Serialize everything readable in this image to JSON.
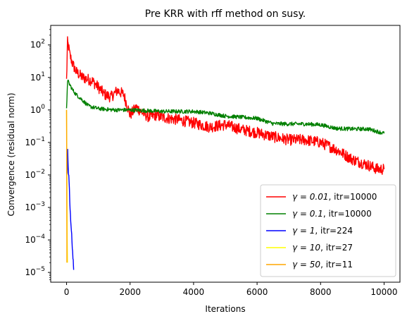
{
  "chart_data": {
    "type": "line",
    "title": "Pre KRR with rff method on susy.",
    "xlabel": "Iterations",
    "ylabel": "Convergence (residual norm)",
    "yscale": "log",
    "xlim": [
      -500,
      10500
    ],
    "ylim": [
      5e-06,
      400
    ],
    "xticks": [
      0,
      2000,
      4000,
      6000,
      8000,
      10000
    ],
    "xtick_labels": [
      "0",
      "2000",
      "4000",
      "6000",
      "8000",
      "10000"
    ],
    "yticks": [
      1e-05,
      0.0001,
      0.001,
      0.01,
      0.1,
      1,
      10,
      100
    ],
    "ytick_mantissa": "10",
    "ytick_exponents": [
      "−5",
      "−4",
      "−3",
      "−2",
      "−1",
      "0",
      "1",
      "2"
    ],
    "grid": false,
    "legend_position": "lower-right",
    "series": [
      {
        "name": "γ = 0.01, itr=10000",
        "legend_math": "γ = 0.01",
        "legend_suffix": ", itr=10000",
        "color": "#ff0000",
        "noise": 0.35,
        "x": [
          0,
          30,
          60,
          100,
          200,
          300,
          500,
          800,
          1000,
          1200,
          1400,
          1600,
          1800,
          2000,
          2200,
          2400,
          2600,
          2800,
          3000,
          3500,
          4000,
          4500,
          5000,
          5500,
          6000,
          6500,
          7000,
          7500,
          8000,
          8500,
          9000,
          9500,
          9800,
          10000
        ],
        "y": [
          8,
          120,
          90,
          50,
          25,
          15,
          10,
          8,
          5,
          3,
          2.5,
          4,
          3,
          0.7,
          1.2,
          0.8,
          0.6,
          0.7,
          0.6,
          0.5,
          0.4,
          0.3,
          0.35,
          0.25,
          0.2,
          0.15,
          0.12,
          0.12,
          0.1,
          0.06,
          0.03,
          0.02,
          0.015,
          0.015
        ]
      },
      {
        "name": "γ = 0.1, itr=10000",
        "legend_math": "γ = 0.1",
        "legend_suffix": ", itr=10000",
        "color": "#008000",
        "noise": 0.12,
        "x": [
          0,
          30,
          100,
          200,
          300,
          500,
          700,
          1000,
          1500,
          2000,
          2500,
          3000,
          3500,
          4000,
          4500,
          5000,
          5500,
          6000,
          6500,
          7000,
          7500,
          8000,
          8500,
          9000,
          9500,
          10000
        ],
        "y": [
          1,
          8,
          6,
          4,
          3,
          2,
          1.3,
          1.1,
          1.0,
          1.0,
          0.95,
          0.9,
          0.9,
          0.9,
          0.8,
          0.65,
          0.6,
          0.55,
          0.38,
          0.37,
          0.37,
          0.35,
          0.27,
          0.26,
          0.26,
          0.19
        ]
      },
      {
        "name": "γ = 1, itr=224",
        "legend_math": "γ = 1",
        "legend_suffix": ", itr=224",
        "color": "#0000ff",
        "noise": 0.2,
        "x": [
          10,
          20,
          35,
          50,
          70,
          90,
          110,
          130,
          150,
          170,
          190,
          210,
          224
        ],
        "y": [
          0.07,
          0.01,
          0.05,
          0.015,
          0.008,
          0.003,
          0.001,
          0.0004,
          0.0002,
          0.0001,
          4e-05,
          2e-05,
          1.2e-05
        ]
      },
      {
        "name": "γ = 10, itr=27",
        "legend_math": "γ = 10",
        "legend_suffix": ", itr=27",
        "color": "#ffff00",
        "noise": 0,
        "x": [
          0,
          5,
          10,
          15,
          20,
          27
        ],
        "y": [
          1,
          0.1,
          0.01,
          0.001,
          0.0001,
          2e-05
        ]
      },
      {
        "name": "γ = 50, itr=11",
        "legend_math": "γ = 50",
        "legend_suffix": ", itr=11",
        "color": "#ffa500",
        "noise": 0,
        "x": [
          0,
          3,
          6,
          9,
          11
        ],
        "y": [
          1,
          0.05,
          0.002,
          0.0001,
          2e-05
        ]
      }
    ]
  }
}
